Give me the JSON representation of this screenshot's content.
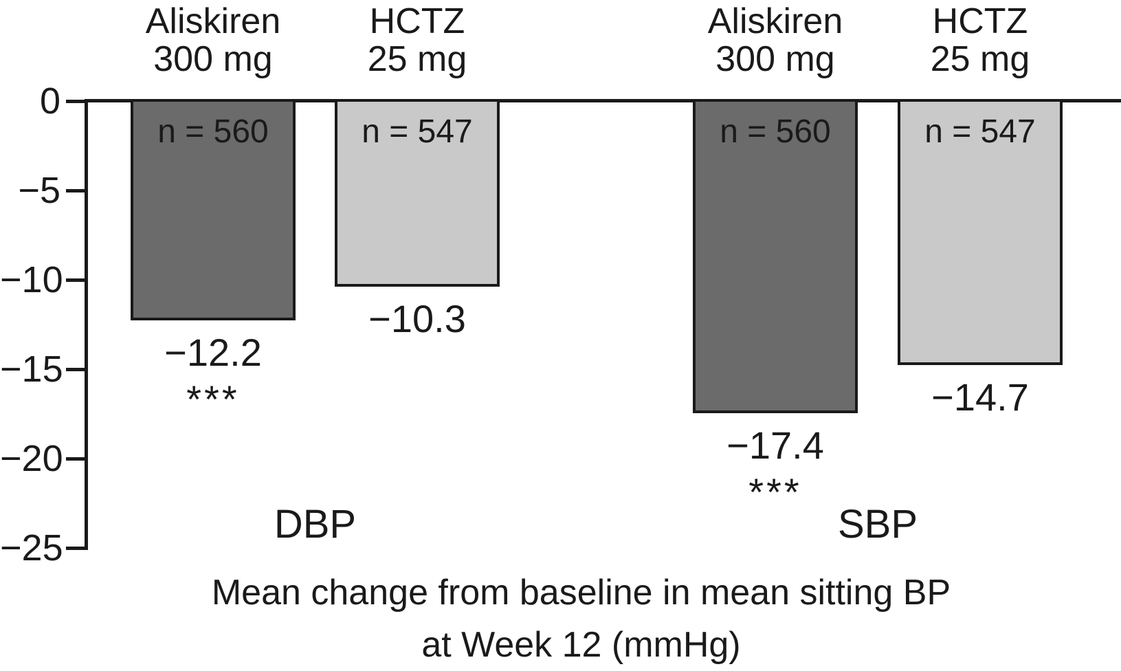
{
  "chart_data": {
    "type": "bar",
    "caption_line1": "Mean change from baseline in mean sitting BP",
    "caption_line2": "at Week 12 (mmHg)",
    "ylim": [
      -25,
      0
    ],
    "yticks": [
      0,
      -5,
      -10,
      -15,
      -20,
      -25
    ],
    "ytick_labels": [
      "0",
      "−5",
      "−10",
      "−15",
      "−20",
      "−25"
    ],
    "grid": false,
    "legend": false,
    "groups": [
      {
        "label": "DBP",
        "bars": [
          {
            "treatment": "Aliskiren",
            "dose": "300 mg",
            "n_label": "n = 560",
            "value": -12.2,
            "value_label": "−12.2",
            "significance": "***",
            "shade": "dark"
          },
          {
            "treatment": "HCTZ",
            "dose": "25 mg",
            "n_label": "n = 547",
            "value": -10.3,
            "value_label": "−10.3",
            "significance": "",
            "shade": "light"
          }
        ]
      },
      {
        "label": "SBP",
        "bars": [
          {
            "treatment": "Aliskiren",
            "dose": "300 mg",
            "n_label": "n = 560",
            "value": -17.4,
            "value_label": "−17.4",
            "significance": "***",
            "shade": "dark"
          },
          {
            "treatment": "HCTZ",
            "dose": "25 mg",
            "n_label": "n = 547",
            "value": -14.7,
            "value_label": "−14.7",
            "significance": "",
            "shade": "light"
          }
        ]
      }
    ],
    "colors": {
      "dark_bar": "#6b6b6b",
      "light_bar": "#c9c9c9",
      "outline": "#1a1a1a",
      "background": "#ffffff"
    }
  }
}
